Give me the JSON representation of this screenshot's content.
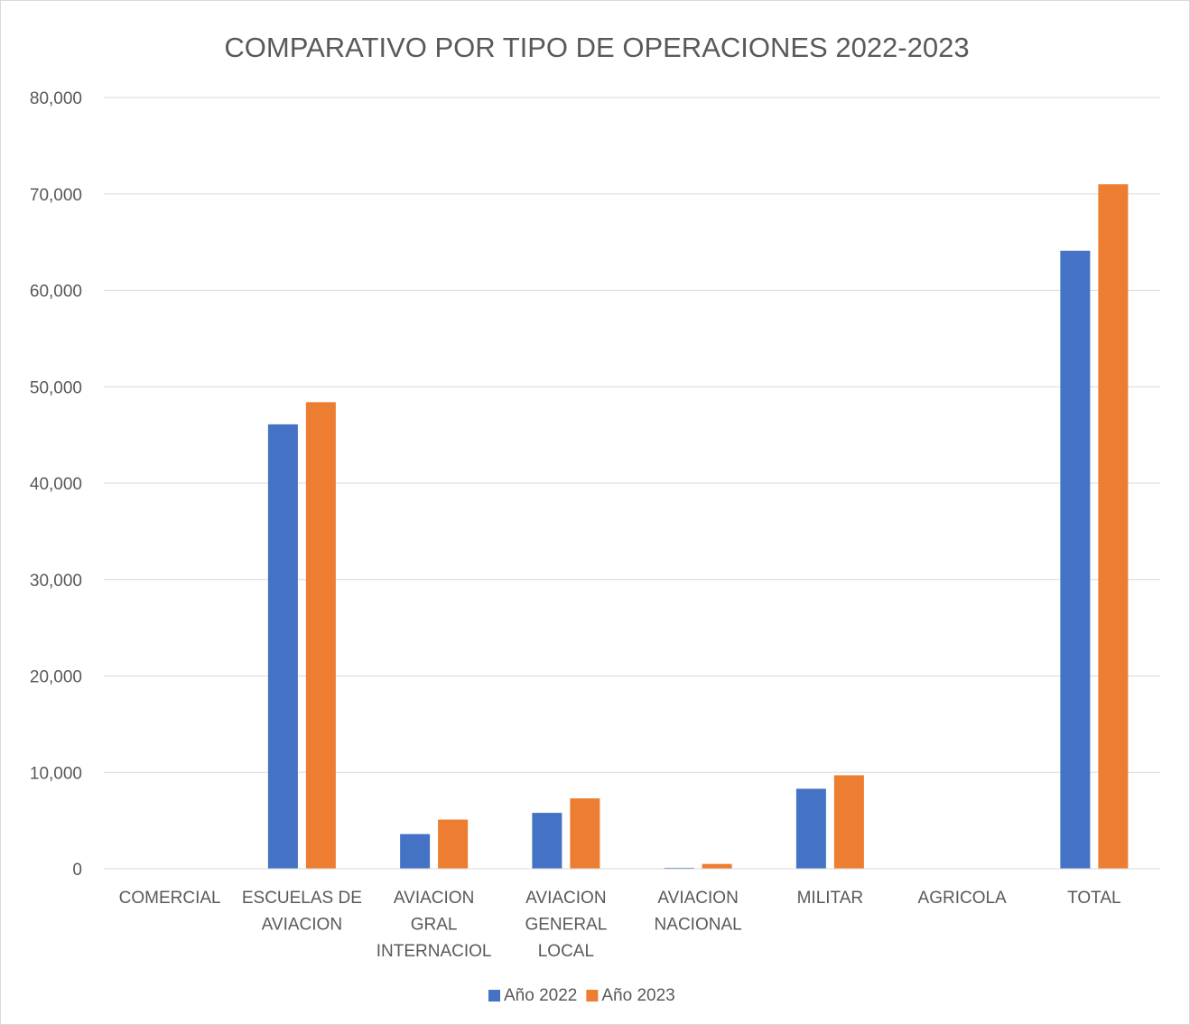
{
  "chart_data": {
    "type": "bar",
    "title": "COMPARATIVO POR TIPO DE OPERACIONES 2022-2023",
    "categories": [
      [
        "COMERCIAL"
      ],
      [
        "ESCUELAS DE",
        "AVIACION"
      ],
      [
        "AVIACION",
        "GRAL",
        "INTERNACIOL"
      ],
      [
        "AVIACION",
        "GENERAL",
        "LOCAL"
      ],
      [
        "AVIACION",
        "NACIONAL"
      ],
      [
        "MILITAR"
      ],
      [
        "AGRICOLA"
      ],
      [
        "TOTAL"
      ]
    ],
    "series": [
      {
        "name": "Año  2022",
        "color": "#4472C4",
        "values": [
          0,
          46100,
          3600,
          5800,
          100,
          8300,
          0,
          64100
        ]
      },
      {
        "name": "Año 2023",
        "color": "#ED7D31",
        "values": [
          0,
          48400,
          5100,
          7300,
          500,
          9700,
          0,
          71000
        ]
      }
    ],
    "ylim": [
      0,
      80000
    ],
    "yticks": [
      0,
      10000,
      20000,
      30000,
      40000,
      50000,
      60000,
      70000,
      80000
    ],
    "ytick_labels": [
      "0",
      "10,000",
      "20,000",
      "30,000",
      "40,000",
      "50,000",
      "60,000",
      "70,000",
      "80,000"
    ],
    "grid": true,
    "legend_position": "bottom"
  }
}
